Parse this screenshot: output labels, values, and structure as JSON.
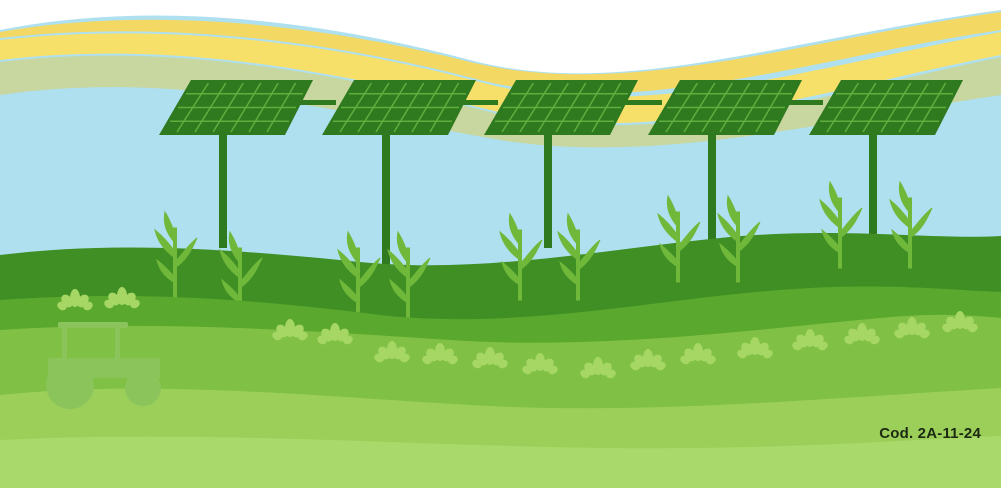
{
  "label": {
    "code_text": "Cod. 2A-11-24"
  },
  "colors": {
    "sky": "#aee0ef",
    "sun_band_light": "#f6e06a",
    "sun_band_dark": "#e9c93f",
    "panel": "#2f7a1f",
    "panel_grid": "#5fae3e",
    "pole": "#2f7a1f",
    "hill_dark": "#3f8f25",
    "hill_mid": "#5aa82e",
    "hill_light": "#80c145",
    "hill_front": "#9ccf5a",
    "tractor": "#8ac45a",
    "text": "#1c2a12"
  },
  "icons": {
    "solar_panel": "solar-panel-icon",
    "tractor": "tractor-icon",
    "crop": "corn-plant-icon",
    "shrub": "shrub-icon"
  },
  "counts": {
    "solar_panels": 5
  }
}
